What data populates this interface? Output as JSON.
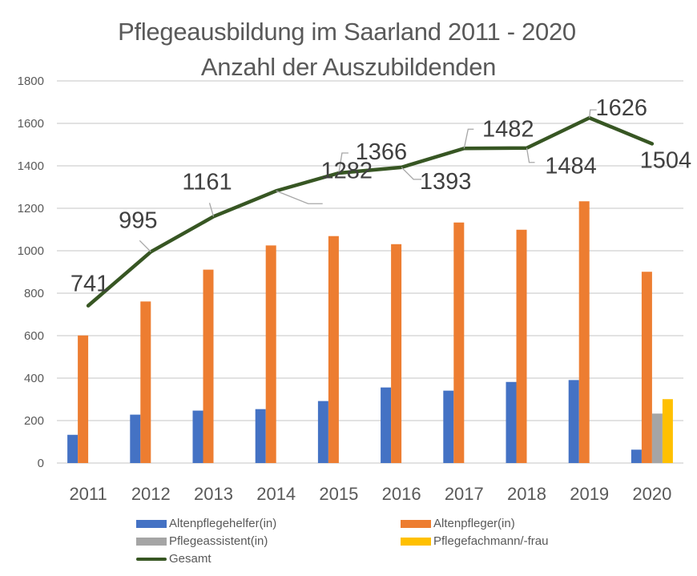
{
  "chart_data": {
    "type": "bar",
    "title": "Pflegeausbildung im Saarland 2011 - 2020",
    "subtitle": "Anzahl der Auszubildenden",
    "xlabel": "",
    "ylabel": "",
    "ylim": [
      0,
      1800
    ],
    "yticks": [
      0,
      200,
      400,
      600,
      800,
      1000,
      1200,
      1400,
      1600,
      1800
    ],
    "ytick_labels": [
      "0",
      "200",
      "400",
      "600",
      "800",
      "1000",
      "1200",
      "1400",
      "1600",
      "1800"
    ],
    "grid": true,
    "legend_position": "bottom",
    "categories": [
      "2011",
      "2012",
      "2013",
      "2014",
      "2015",
      "2016",
      "2017",
      "2018",
      "2019",
      "2020"
    ],
    "series": [
      {
        "name": "Altenpflegehelfer(in)",
        "kind": "bar",
        "color": "#4472C4",
        "values": [
          133,
          228,
          247,
          254,
          292,
          356,
          341,
          382,
          391,
          63
        ]
      },
      {
        "name": "Altenpfleger(in)",
        "kind": "bar",
        "color": "#ED7D31",
        "values": [
          601,
          761,
          911,
          1025,
          1069,
          1031,
          1133,
          1099,
          1233,
          901
        ]
      },
      {
        "name": "Pflegeassistent(in)",
        "kind": "bar",
        "color": "#A5A5A5",
        "values": [
          null,
          null,
          null,
          null,
          null,
          null,
          null,
          null,
          null,
          233
        ]
      },
      {
        "name": "Pflegefachmann/-frau",
        "kind": "bar",
        "color": "#FFC000",
        "values": [
          null,
          null,
          null,
          null,
          null,
          null,
          null,
          null,
          null,
          301
        ]
      },
      {
        "name": "Gesamt",
        "kind": "line",
        "color": "#375623",
        "values": [
          741,
          995,
          1161,
          1282,
          1366,
          1393,
          1482,
          1484,
          1626,
          1504
        ],
        "data_labels": [
          "741",
          "995",
          "1161",
          "1282",
          "1366",
          "1393",
          "1482",
          "1484",
          "1626",
          "1504"
        ]
      }
    ]
  },
  "legend": {
    "items": [
      {
        "label": "Altenpflegehelfer(in)",
        "color": "#4472C4",
        "kind": "bar"
      },
      {
        "label": "Altenpfleger(in)",
        "color": "#ED7D31",
        "kind": "bar"
      },
      {
        "label": "Pflegeassistent(in)",
        "color": "#A5A5A5",
        "kind": "bar"
      },
      {
        "label": "Pflegefachmann/-frau",
        "color": "#FFC000",
        "kind": "bar"
      },
      {
        "label": "Gesamt",
        "color": "#375623",
        "kind": "line"
      }
    ]
  },
  "colors": {
    "grid": "#D9D9D9",
    "text": "#595959",
    "label_text": "#404040",
    "leader": "#A6A6A6"
  }
}
